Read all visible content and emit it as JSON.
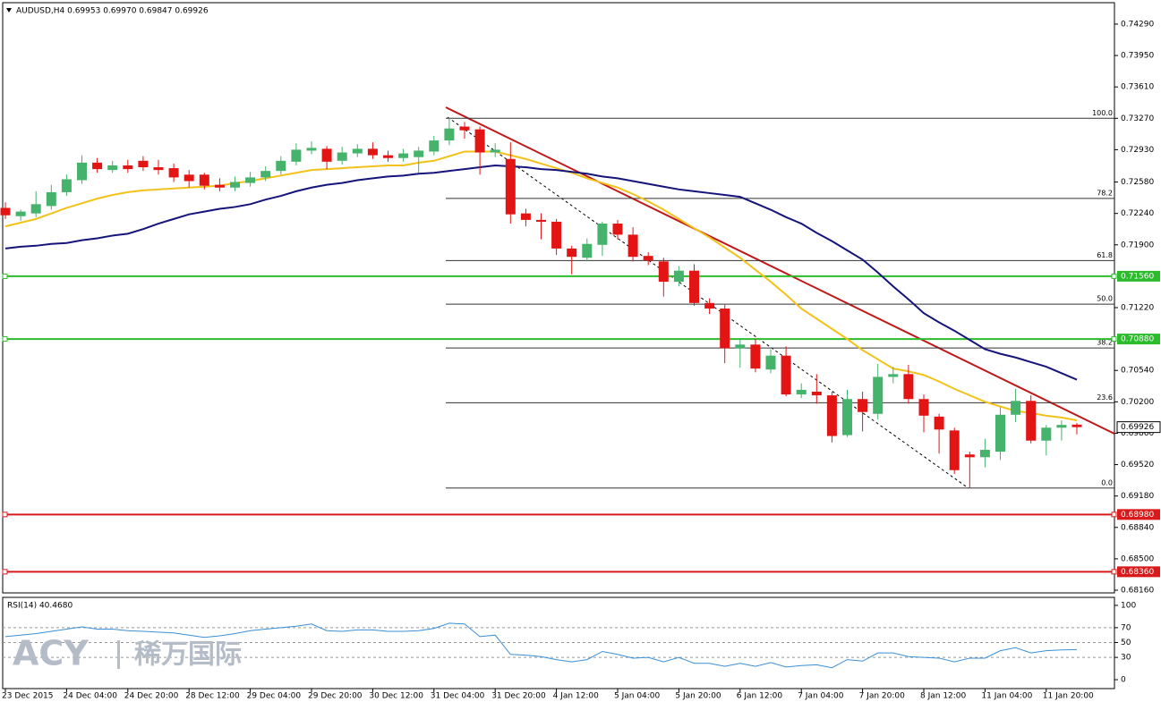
{
  "chart_data": [
    {
      "type": "candlestick",
      "title": "AUDUSD,H4  0.69953 0.69970 0.69847 0.69926",
      "categories": [
        "23 Dec 2015",
        null,
        null,
        null,
        "24 Dec 04:00",
        null,
        null,
        null,
        "24 Dec 20:00",
        null,
        null,
        null,
        "28 Dec 12:00",
        null,
        null,
        null,
        "29 Dec 04:00",
        null,
        null,
        null,
        "29 Dec 20:00",
        null,
        null,
        null,
        "30 Dec 12:00",
        null,
        null,
        null,
        "31 Dec 04:00",
        null,
        null,
        null,
        "31 Dec 20:00",
        null,
        null,
        null,
        "4 Jan 12:00",
        null,
        null,
        null,
        "5 Jan 04:00",
        null,
        null,
        null,
        "5 Jan 20:00",
        null,
        null,
        null,
        "6 Jan 12:00",
        null,
        null,
        null,
        "7 Jan 04:00",
        null,
        null,
        null,
        "7 Jan 20:00",
        null,
        null,
        null,
        "8 Jan 12:00",
        null,
        null,
        null,
        "11 Jan 04:00",
        null,
        null,
        null,
        "11 Jan 20:00",
        null,
        null
      ],
      "open": [
        0.723,
        0.7221,
        0.7224,
        0.7232,
        0.7247,
        0.726,
        0.7279,
        0.7271,
        0.7276,
        0.7281,
        0.7274,
        0.7273,
        0.7266,
        0.7266,
        0.7255,
        0.7252,
        0.7257,
        0.7263,
        0.727,
        0.728,
        0.7292,
        0.7294,
        0.7281,
        0.7289,
        0.7294,
        0.7287,
        0.7284,
        0.7285,
        0.7291,
        0.7303,
        0.7318,
        0.7315,
        0.729,
        0.7283,
        0.7224,
        0.7217,
        0.7215,
        0.7186,
        0.7176,
        0.719,
        0.7213,
        0.7201,
        0.7178,
        0.7172,
        0.715,
        0.7162,
        0.7127,
        0.7121,
        0.7078,
        0.7082,
        0.7055,
        0.707,
        0.7028,
        0.7031,
        0.7027,
        0.6984,
        0.7023,
        0.7007,
        0.7047,
        0.705,
        0.7023,
        0.7004,
        0.6989,
        0.6963,
        0.696,
        0.6966,
        0.7006,
        0.7021,
        0.6978,
        0.6992,
        0.69953
      ],
      "high": [
        0.7236,
        0.7228,
        0.7248,
        0.7255,
        0.7266,
        0.7287,
        0.7284,
        0.7281,
        0.7282,
        0.7286,
        0.7282,
        0.7278,
        0.7271,
        0.7268,
        0.7262,
        0.7264,
        0.7269,
        0.7275,
        0.7286,
        0.73,
        0.7302,
        0.7297,
        0.7296,
        0.7299,
        0.7301,
        0.7292,
        0.7294,
        0.7296,
        0.7308,
        0.7327,
        0.7323,
        0.7318,
        0.73,
        0.7301,
        0.7229,
        0.7224,
        0.7218,
        0.7189,
        0.7197,
        0.7215,
        0.7217,
        0.7209,
        0.7182,
        0.7176,
        0.7167,
        0.7169,
        0.7132,
        0.7125,
        0.7088,
        0.7088,
        0.7077,
        0.708,
        0.704,
        0.705,
        0.7031,
        0.7033,
        0.7031,
        0.7061,
        0.7058,
        0.706,
        0.7028,
        0.7007,
        0.6992,
        0.6966,
        0.698,
        0.7014,
        0.7034,
        0.7027,
        0.6995,
        0.7,
        0.6997
      ],
      "low": [
        0.7218,
        0.7216,
        0.722,
        0.7228,
        0.7243,
        0.7256,
        0.7268,
        0.7268,
        0.7268,
        0.727,
        0.7266,
        0.7258,
        0.7252,
        0.725,
        0.7248,
        0.7248,
        0.7253,
        0.7259,
        0.7266,
        0.7276,
        0.7288,
        0.7272,
        0.7277,
        0.7285,
        0.7283,
        0.728,
        0.728,
        0.7268,
        0.7287,
        0.7298,
        0.7305,
        0.7266,
        0.7285,
        0.7213,
        0.721,
        0.7196,
        0.7179,
        0.7158,
        0.7172,
        0.7178,
        0.7196,
        0.7172,
        0.7168,
        0.7134,
        0.7145,
        0.7124,
        0.7115,
        0.7062,
        0.7057,
        0.7052,
        0.7051,
        0.7026,
        0.7024,
        0.7018,
        0.6976,
        0.6982,
        0.6988,
        0.7001,
        0.704,
        0.7018,
        0.6987,
        0.6964,
        0.6942,
        0.6927,
        0.6949,
        0.6957,
        0.6998,
        0.6975,
        0.6962,
        0.6978,
        0.69847
      ],
      "close": [
        0.7222,
        0.7226,
        0.7234,
        0.7247,
        0.7261,
        0.7279,
        0.7272,
        0.7276,
        0.7272,
        0.7274,
        0.7271,
        0.7263,
        0.7259,
        0.7254,
        0.7252,
        0.7258,
        0.7263,
        0.727,
        0.7281,
        0.7293,
        0.7295,
        0.728,
        0.729,
        0.7294,
        0.7287,
        0.7284,
        0.7289,
        0.7292,
        0.7303,
        0.7316,
        0.7314,
        0.729,
        0.7293,
        0.7223,
        0.7217,
        0.7215,
        0.7186,
        0.7177,
        0.7191,
        0.7213,
        0.7201,
        0.7177,
        0.7173,
        0.715,
        0.7162,
        0.7127,
        0.7121,
        0.7078,
        0.7082,
        0.7056,
        0.707,
        0.7028,
        0.7033,
        0.7027,
        0.6983,
        0.7023,
        0.7009,
        0.7047,
        0.705,
        0.7023,
        0.7005,
        0.699,
        0.6946,
        0.696,
        0.6968,
        0.7006,
        0.7021,
        0.6978,
        0.6992,
        0.6995,
        0.69926
      ],
      "up_color": "#45b36b",
      "down_color": "#e31414",
      "lines": [
        {
          "color": "#f2c21b",
          "values": [
            0.721,
            0.7214,
            0.7218,
            0.7224,
            0.723,
            0.7235,
            0.724,
            0.7244,
            0.7247,
            0.7249,
            0.725,
            0.7251,
            0.7252,
            0.7253,
            0.7254,
            0.7257,
            0.7259,
            0.7262,
            0.7265,
            0.7268,
            0.7271,
            0.7272,
            0.7273,
            0.7274,
            0.7275,
            0.7276,
            0.7276,
            0.7279,
            0.7281,
            0.7286,
            0.7291,
            0.7291,
            0.7291,
            0.7287,
            0.7283,
            0.7278,
            0.7273,
            0.7268,
            0.7262,
            0.7257,
            0.7252,
            0.7245,
            0.7237,
            0.7228,
            0.7218,
            0.7208,
            0.7198,
            0.7187,
            0.7176,
            0.7163,
            0.715,
            0.7136,
            0.7121,
            0.711,
            0.7099,
            0.7088,
            0.7076,
            0.7066,
            0.7056,
            0.7053,
            0.7049,
            0.7042,
            0.7034,
            0.7027,
            0.702,
            0.7015,
            0.701,
            0.7008,
            0.7005,
            0.7003,
            0.7
          ]
        },
        {
          "color": "#14147a",
          "values": [
            0.7186,
            0.7188,
            0.7189,
            0.7191,
            0.7192,
            0.7195,
            0.7197,
            0.72,
            0.7202,
            0.7207,
            0.7213,
            0.7218,
            0.7223,
            0.7226,
            0.7229,
            0.7231,
            0.7234,
            0.7239,
            0.7243,
            0.7248,
            0.7252,
            0.7255,
            0.7257,
            0.726,
            0.7262,
            0.7264,
            0.7265,
            0.7267,
            0.7268,
            0.727,
            0.7272,
            0.7274,
            0.7276,
            0.7275,
            0.7274,
            0.7272,
            0.7271,
            0.7269,
            0.7267,
            0.7264,
            0.7262,
            0.7259,
            0.7256,
            0.7253,
            0.725,
            0.7248,
            0.7246,
            0.7244,
            0.7242,
            0.7235,
            0.7228,
            0.722,
            0.7213,
            0.7203,
            0.7194,
            0.7184,
            0.7174,
            0.716,
            0.7145,
            0.7131,
            0.7116,
            0.7106,
            0.7097,
            0.7087,
            0.7077,
            0.7072,
            0.7068,
            0.7063,
            0.7058,
            0.7051,
            0.7044
          ]
        }
      ],
      "ylim": [
        0.68131,
        0.74522
      ],
      "yticks": [
        {
          "value": 0.7429,
          "label": "0.74290"
        },
        {
          "value": 0.7395,
          "label": "0.73950"
        },
        {
          "value": 0.7361,
          "label": "0.73610"
        },
        {
          "value": 0.7327,
          "label": "0.73270"
        },
        {
          "value": 0.7293,
          "label": "0.72930"
        },
        {
          "value": 0.7258,
          "label": "0.72580"
        },
        {
          "value": 0.7224,
          "label": "0.72240"
        },
        {
          "value": 0.719,
          "label": "0.71900"
        },
        {
          "value": 0.7122,
          "label": "0.71220"
        },
        {
          "value": 0.7054,
          "label": "0.70540"
        },
        {
          "value": 0.702,
          "label": "0.70200"
        },
        {
          "value": 0.6986,
          "label": "0.69860"
        },
        {
          "value": 0.6952,
          "label": "0.69520"
        },
        {
          "value": 0.6918,
          "label": "0.69180"
        },
        {
          "value": 0.6884,
          "label": "0.68840"
        },
        {
          "value": 0.685,
          "label": "0.68500"
        },
        {
          "value": 0.6816,
          "label": "0.68160"
        }
      ],
      "levels": [
        {
          "value": 0.7156,
          "label": "0.71560",
          "color": "#2cbb2c"
        },
        {
          "value": 0.7088,
          "label": "0.70880",
          "color": "#2cbb2c"
        },
        {
          "value": 0.6898,
          "label": "0.68980",
          "color": "#d91a1a"
        },
        {
          "value": 0.6836,
          "label": "0.68360",
          "color": "#d91a1a"
        }
      ],
      "current_price": {
        "value": 0.69926,
        "label": "0.69926"
      },
      "fib": [
        {
          "label": "100.0",
          "value": 0.7327
        },
        {
          "label": "78.2",
          "value": 0.72403
        },
        {
          "label": "61.8",
          "value": 0.7173
        },
        {
          "label": "50.0",
          "value": 0.71257
        },
        {
          "label": "38.2",
          "value": 0.70783
        },
        {
          "label": "23.6",
          "value": 0.7019
        },
        {
          "label": "0.0",
          "value": 0.69266
        }
      ]
    },
    {
      "type": "line",
      "title": "RSI(14) 40.4680",
      "color": "#3a8fd6",
      "values": [
        58,
        60,
        62,
        65,
        68,
        71,
        68,
        68,
        66,
        65,
        64,
        63,
        60,
        57,
        59,
        62,
        66,
        68,
        70,
        72,
        75,
        66,
        65,
        67,
        67,
        65,
        65,
        66,
        69,
        76,
        75,
        58,
        60,
        34,
        33,
        31,
        27,
        24,
        27,
        38,
        34,
        29,
        30,
        24,
        30,
        22,
        22,
        18,
        22,
        18,
        23,
        17,
        19,
        20,
        16,
        27,
        25,
        36,
        36,
        31,
        30,
        29,
        24,
        29,
        29,
        39,
        43,
        36,
        39,
        40,
        40.468
      ],
      "ylim": [
        -12,
        110.8
      ],
      "yticks": [
        100,
        70,
        50,
        30,
        0
      ],
      "level_lines": [
        70,
        50,
        30
      ],
      "watermark": [
        "ACY",
        "稀万国际"
      ]
    }
  ]
}
